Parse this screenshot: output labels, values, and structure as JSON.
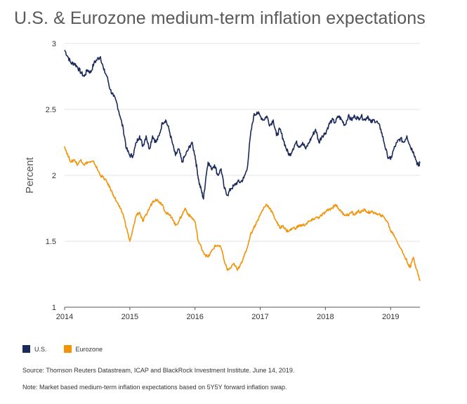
{
  "title": "U.S. & Eurozone medium-term inflation expectations",
  "source": "Source: Thomson Reuters Datastream, ICAP and BlackRock Investment Institute. June 14, 2019.",
  "note": "Note: Market based medium-term inflation expectations based on 5Y5Y forward inflation swap.",
  "colors": {
    "us": "#1b2a5b",
    "eurozone": "#f2930a",
    "grid": "#e6e6e6",
    "axis": "#555555"
  },
  "chart_data": {
    "type": "line",
    "title": "U.S. & Eurozone medium-term inflation expectations",
    "xlabel": "",
    "ylabel": "Percent",
    "xlim": [
      2014.0,
      2019.45
    ],
    "ylim": [
      1,
      3
    ],
    "xticks": [
      "2014",
      "2015",
      "2016",
      "2017",
      "2018",
      "2019"
    ],
    "yticks": [
      "1",
      "1.5",
      "2",
      "2.5",
      "3"
    ],
    "grid": true,
    "legend_position": "bottom-left",
    "series": [
      {
        "name": "U.S.",
        "color": "#1b2a5b",
        "points": [
          [
            2014.0,
            2.95
          ],
          [
            2014.05,
            2.9
          ],
          [
            2014.1,
            2.85
          ],
          [
            2014.15,
            2.85
          ],
          [
            2014.2,
            2.82
          ],
          [
            2014.25,
            2.78
          ],
          [
            2014.3,
            2.75
          ],
          [
            2014.35,
            2.8
          ],
          [
            2014.4,
            2.78
          ],
          [
            2014.45,
            2.85
          ],
          [
            2014.5,
            2.88
          ],
          [
            2014.55,
            2.9
          ],
          [
            2014.6,
            2.8
          ],
          [
            2014.65,
            2.75
          ],
          [
            2014.7,
            2.65
          ],
          [
            2014.75,
            2.6
          ],
          [
            2014.8,
            2.55
          ],
          [
            2014.85,
            2.45
          ],
          [
            2014.9,
            2.35
          ],
          [
            2014.95,
            2.2
          ],
          [
            2015.0,
            2.15
          ],
          [
            2015.05,
            2.15
          ],
          [
            2015.1,
            2.25
          ],
          [
            2015.15,
            2.3
          ],
          [
            2015.2,
            2.22
          ],
          [
            2015.25,
            2.3
          ],
          [
            2015.3,
            2.2
          ],
          [
            2015.35,
            2.3
          ],
          [
            2015.4,
            2.25
          ],
          [
            2015.45,
            2.3
          ],
          [
            2015.5,
            2.4
          ],
          [
            2015.55,
            2.42
          ],
          [
            2015.6,
            2.35
          ],
          [
            2015.65,
            2.25
          ],
          [
            2015.7,
            2.15
          ],
          [
            2015.75,
            2.2
          ],
          [
            2015.8,
            2.1
          ],
          [
            2015.85,
            2.15
          ],
          [
            2015.9,
            2.2
          ],
          [
            2015.95,
            2.25
          ],
          [
            2016.0,
            2.15
          ],
          [
            2016.03,
            2.05
          ],
          [
            2016.06,
            1.95
          ],
          [
            2016.1,
            1.88
          ],
          [
            2016.13,
            1.82
          ],
          [
            2016.17,
            2.0
          ],
          [
            2016.2,
            2.1
          ],
          [
            2016.25,
            2.05
          ],
          [
            2016.3,
            2.08
          ],
          [
            2016.35,
            2.0
          ],
          [
            2016.4,
            2.05
          ],
          [
            2016.45,
            1.9
          ],
          [
            2016.5,
            1.85
          ],
          [
            2016.55,
            1.9
          ],
          [
            2016.6,
            1.92
          ],
          [
            2016.65,
            1.95
          ],
          [
            2016.7,
            1.95
          ],
          [
            2016.75,
            1.98
          ],
          [
            2016.8,
            2.05
          ],
          [
            2016.85,
            2.3
          ],
          [
            2016.9,
            2.45
          ],
          [
            2016.95,
            2.48
          ],
          [
            2017.0,
            2.45
          ],
          [
            2017.05,
            2.42
          ],
          [
            2017.1,
            2.45
          ],
          [
            2017.15,
            2.38
          ],
          [
            2017.2,
            2.42
          ],
          [
            2017.25,
            2.3
          ],
          [
            2017.3,
            2.35
          ],
          [
            2017.35,
            2.28
          ],
          [
            2017.4,
            2.2
          ],
          [
            2017.45,
            2.15
          ],
          [
            2017.5,
            2.2
          ],
          [
            2017.55,
            2.25
          ],
          [
            2017.6,
            2.22
          ],
          [
            2017.65,
            2.25
          ],
          [
            2017.7,
            2.2
          ],
          [
            2017.75,
            2.25
          ],
          [
            2017.8,
            2.3
          ],
          [
            2017.85,
            2.35
          ],
          [
            2017.9,
            2.25
          ],
          [
            2017.95,
            2.3
          ],
          [
            2018.0,
            2.32
          ],
          [
            2018.05,
            2.38
          ],
          [
            2018.1,
            2.42
          ],
          [
            2018.15,
            2.4
          ],
          [
            2018.2,
            2.45
          ],
          [
            2018.25,
            2.42
          ],
          [
            2018.3,
            2.38
          ],
          [
            2018.35,
            2.45
          ],
          [
            2018.4,
            2.42
          ],
          [
            2018.45,
            2.45
          ],
          [
            2018.5,
            2.43
          ],
          [
            2018.55,
            2.45
          ],
          [
            2018.6,
            2.42
          ],
          [
            2018.65,
            2.45
          ],
          [
            2018.7,
            2.4
          ],
          [
            2018.75,
            2.42
          ],
          [
            2018.8,
            2.4
          ],
          [
            2018.85,
            2.35
          ],
          [
            2018.9,
            2.25
          ],
          [
            2018.95,
            2.15
          ],
          [
            2019.0,
            2.12
          ],
          [
            2019.05,
            2.2
          ],
          [
            2019.1,
            2.25
          ],
          [
            2019.15,
            2.28
          ],
          [
            2019.2,
            2.25
          ],
          [
            2019.25,
            2.3
          ],
          [
            2019.3,
            2.22
          ],
          [
            2019.35,
            2.18
          ],
          [
            2019.4,
            2.1
          ],
          [
            2019.43,
            2.07
          ],
          [
            2019.45,
            2.1
          ]
        ]
      },
      {
        "name": "Eurozone",
        "color": "#f2930a",
        "points": [
          [
            2014.0,
            2.22
          ],
          [
            2014.05,
            2.15
          ],
          [
            2014.1,
            2.1
          ],
          [
            2014.15,
            2.12
          ],
          [
            2014.2,
            2.08
          ],
          [
            2014.25,
            2.12
          ],
          [
            2014.3,
            2.08
          ],
          [
            2014.35,
            2.1
          ],
          [
            2014.4,
            2.1
          ],
          [
            2014.45,
            2.1
          ],
          [
            2014.5,
            2.05
          ],
          [
            2014.55,
            2.0
          ],
          [
            2014.6,
            1.98
          ],
          [
            2014.65,
            1.95
          ],
          [
            2014.7,
            1.9
          ],
          [
            2014.75,
            1.85
          ],
          [
            2014.8,
            1.8
          ],
          [
            2014.85,
            1.75
          ],
          [
            2014.9,
            1.7
          ],
          [
            2014.95,
            1.6
          ],
          [
            2015.0,
            1.5
          ],
          [
            2015.03,
            1.55
          ],
          [
            2015.06,
            1.62
          ],
          [
            2015.1,
            1.7
          ],
          [
            2015.15,
            1.72
          ],
          [
            2015.2,
            1.65
          ],
          [
            2015.25,
            1.7
          ],
          [
            2015.3,
            1.75
          ],
          [
            2015.35,
            1.8
          ],
          [
            2015.4,
            1.82
          ],
          [
            2015.45,
            1.8
          ],
          [
            2015.5,
            1.78
          ],
          [
            2015.55,
            1.72
          ],
          [
            2015.6,
            1.7
          ],
          [
            2015.65,
            1.68
          ],
          [
            2015.7,
            1.62
          ],
          [
            2015.75,
            1.65
          ],
          [
            2015.8,
            1.7
          ],
          [
            2015.85,
            1.75
          ],
          [
            2015.9,
            1.7
          ],
          [
            2015.95,
            1.68
          ],
          [
            2016.0,
            1.65
          ],
          [
            2016.05,
            1.5
          ],
          [
            2016.1,
            1.45
          ],
          [
            2016.15,
            1.4
          ],
          [
            2016.2,
            1.38
          ],
          [
            2016.25,
            1.42
          ],
          [
            2016.3,
            1.46
          ],
          [
            2016.35,
            1.47
          ],
          [
            2016.4,
            1.45
          ],
          [
            2016.45,
            1.35
          ],
          [
            2016.5,
            1.28
          ],
          [
            2016.55,
            1.3
          ],
          [
            2016.6,
            1.33
          ],
          [
            2016.65,
            1.28
          ],
          [
            2016.7,
            1.33
          ],
          [
            2016.75,
            1.38
          ],
          [
            2016.8,
            1.45
          ],
          [
            2016.85,
            1.55
          ],
          [
            2016.9,
            1.6
          ],
          [
            2016.95,
            1.65
          ],
          [
            2017.0,
            1.7
          ],
          [
            2017.05,
            1.75
          ],
          [
            2017.1,
            1.78
          ],
          [
            2017.15,
            1.75
          ],
          [
            2017.2,
            1.7
          ],
          [
            2017.25,
            1.65
          ],
          [
            2017.3,
            1.6
          ],
          [
            2017.35,
            1.62
          ],
          [
            2017.4,
            1.58
          ],
          [
            2017.45,
            1.58
          ],
          [
            2017.5,
            1.6
          ],
          [
            2017.55,
            1.6
          ],
          [
            2017.6,
            1.62
          ],
          [
            2017.65,
            1.62
          ],
          [
            2017.7,
            1.63
          ],
          [
            2017.75,
            1.65
          ],
          [
            2017.8,
            1.66
          ],
          [
            2017.85,
            1.68
          ],
          [
            2017.9,
            1.68
          ],
          [
            2017.95,
            1.7
          ],
          [
            2018.0,
            1.72
          ],
          [
            2018.05,
            1.74
          ],
          [
            2018.1,
            1.75
          ],
          [
            2018.15,
            1.78
          ],
          [
            2018.2,
            1.75
          ],
          [
            2018.25,
            1.72
          ],
          [
            2018.3,
            1.7
          ],
          [
            2018.35,
            1.7
          ],
          [
            2018.4,
            1.72
          ],
          [
            2018.45,
            1.7
          ],
          [
            2018.5,
            1.73
          ],
          [
            2018.55,
            1.72
          ],
          [
            2018.6,
            1.74
          ],
          [
            2018.65,
            1.72
          ],
          [
            2018.7,
            1.72
          ],
          [
            2018.75,
            1.72
          ],
          [
            2018.8,
            1.7
          ],
          [
            2018.85,
            1.7
          ],
          [
            2018.9,
            1.68
          ],
          [
            2018.95,
            1.65
          ],
          [
            2019.0,
            1.58
          ],
          [
            2019.05,
            1.55
          ],
          [
            2019.1,
            1.5
          ],
          [
            2019.15,
            1.45
          ],
          [
            2019.2,
            1.4
          ],
          [
            2019.25,
            1.35
          ],
          [
            2019.3,
            1.3
          ],
          [
            2019.35,
            1.38
          ],
          [
            2019.38,
            1.32
          ],
          [
            2019.42,
            1.25
          ],
          [
            2019.45,
            1.2
          ]
        ]
      }
    ]
  }
}
